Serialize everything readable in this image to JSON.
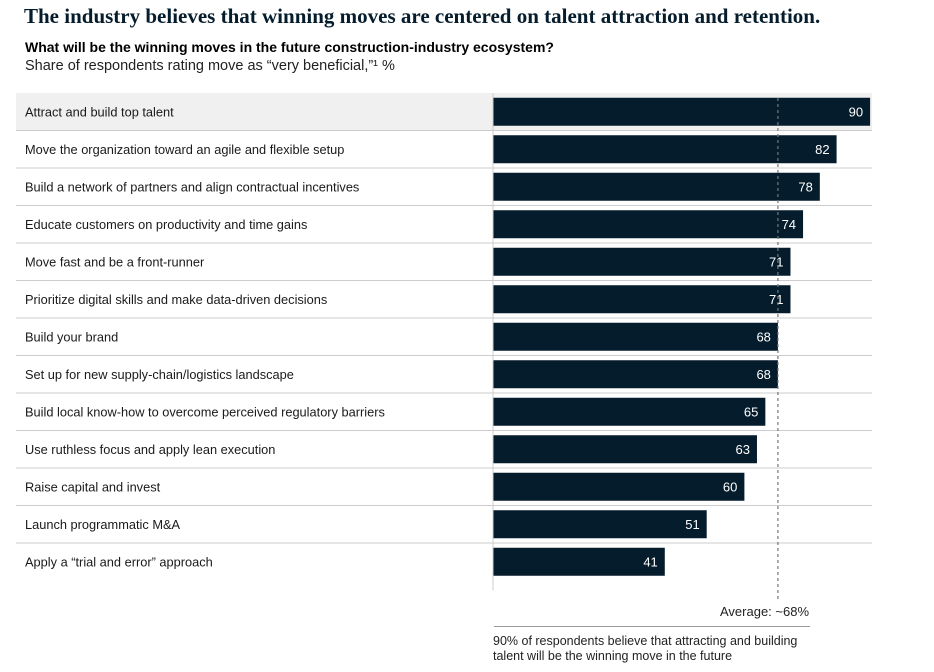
{
  "header": {
    "title": "The industry believes that winning moves are centered on talent attraction and retention.",
    "subtitle": "What will be the winning moves in the future construction-industry ecosystem?",
    "unit_label": "Share of respondents rating move as “very beneficial,”¹ %"
  },
  "chart_data": {
    "type": "bar",
    "orientation": "horizontal",
    "title": "What will be the winning moves in the future construction-industry ecosystem?",
    "ylabel": "Share of respondents rating move as “very beneficial,”¹ %",
    "categories": [
      "Attract and build top talent",
      "Move the organization toward an agile and flexible setup",
      "Build a network of partners and align contractual incentives",
      "Educate customers on productivity and time gains",
      "Move fast and be a front-runner",
      "Prioritize digital skills and make data-driven decisions",
      "Build your brand",
      "Set up for new supply-chain/logistics landscape",
      "Build local know-how to overcome perceived regulatory barriers",
      "Use ruthless focus and apply lean execution",
      "Raise capital and invest",
      "Launch programmatic M&A",
      "Apply a “trial and error” approach"
    ],
    "values": [
      90,
      82,
      78,
      74,
      71,
      71,
      68,
      68,
      65,
      63,
      60,
      51,
      41
    ],
    "highlight_index": 0,
    "average": 68,
    "average_label": "Average: ~68%",
    "xlim": [
      0,
      100
    ],
    "colors": {
      "bar": "#051c2c",
      "bar_text": "#ffffff",
      "highlight_row": "#f0f0f0",
      "divider": "#cccccc",
      "average_line": "#777777"
    }
  },
  "footnote": "90% of respondents believe that attracting and building talent will be the winning move in the future"
}
